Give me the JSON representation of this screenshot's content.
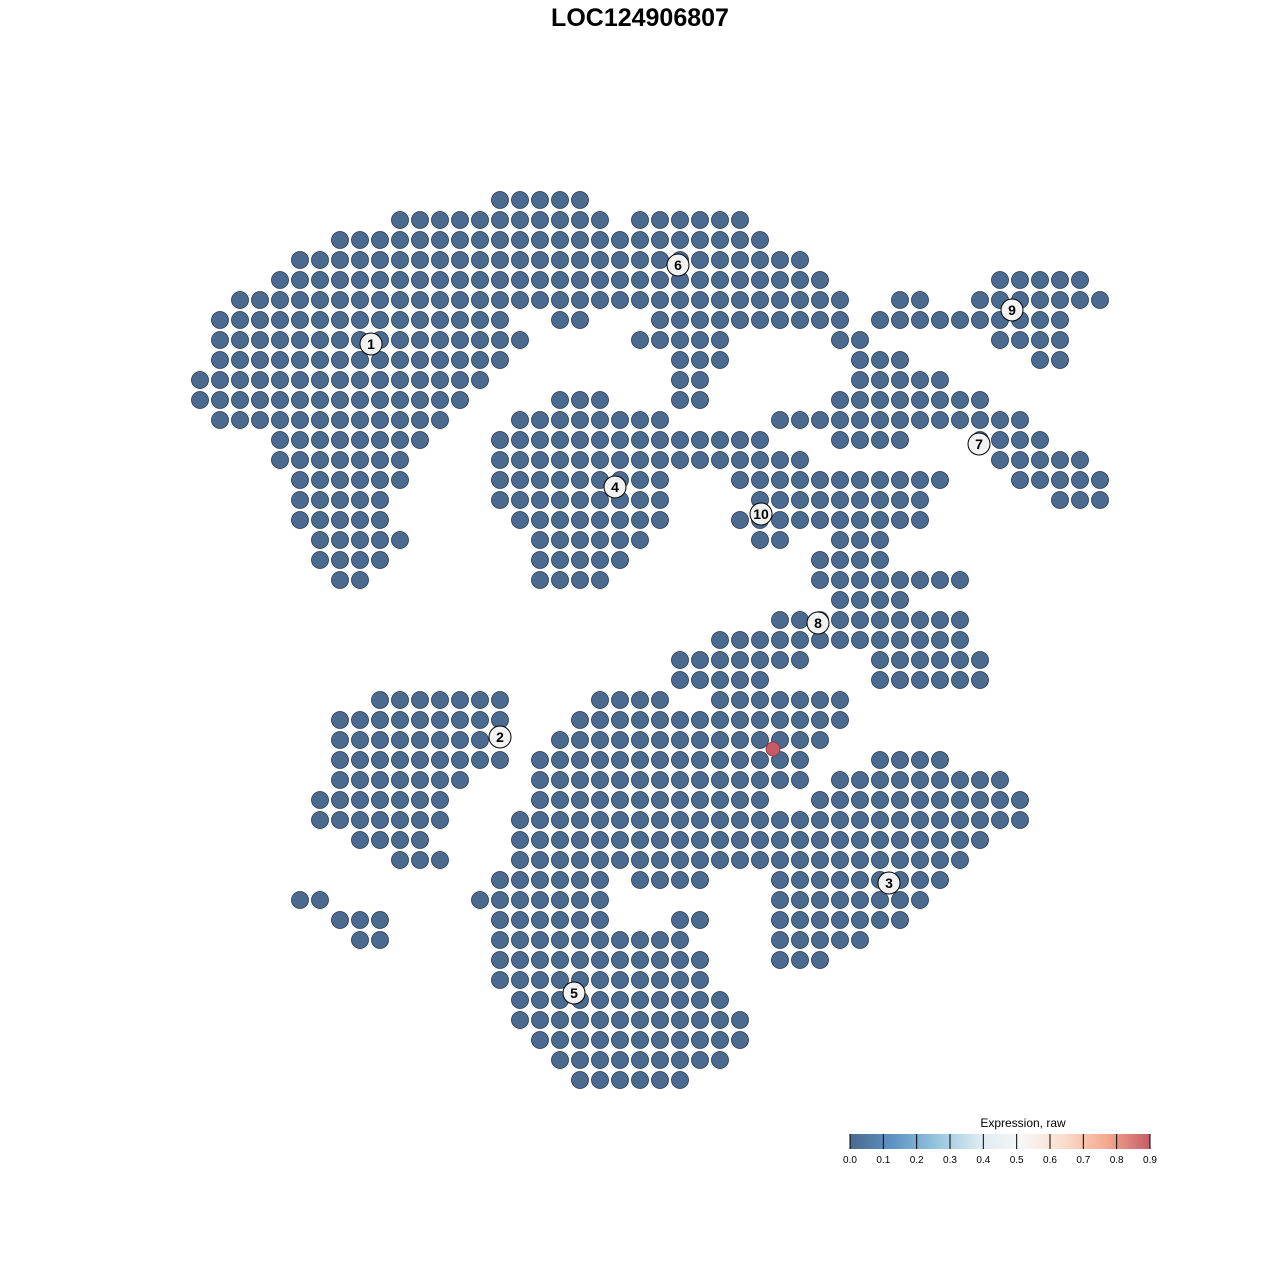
{
  "chart_data": {
    "type": "scatter",
    "title": "LOC124906807",
    "xlabel": "",
    "ylabel": "",
    "xlim": [
      -45,
      50
    ],
    "ylim": [
      -46,
      46
    ],
    "grid": false,
    "point_value_default": 0.0,
    "rows": [
      {
        "y": 44,
        "x": [
          -14,
          -12,
          -10,
          -8,
          -6
        ]
      },
      {
        "y": 42,
        "x": [
          -24,
          -22,
          -20,
          -18,
          -16,
          -14,
          -12,
          -10,
          -8,
          -6,
          -4,
          0,
          2,
          4,
          6,
          8,
          10
        ]
      },
      {
        "y": 40,
        "x": [
          -30,
          -28,
          -26,
          -24,
          -22,
          -20,
          -18,
          -16,
          -14,
          -12,
          -10,
          -8,
          -6,
          -4,
          -2,
          0,
          2,
          4,
          6,
          8,
          10,
          12
        ]
      },
      {
        "y": 38,
        "x": [
          -34,
          -32,
          -30,
          -28,
          -26,
          -24,
          -22,
          -20,
          -18,
          -16,
          -14,
          -12,
          -10,
          -8,
          -6,
          -4,
          -2,
          0,
          2,
          4,
          6,
          8,
          10,
          12,
          14,
          16
        ]
      },
      {
        "y": 36,
        "x": [
          -36,
          -34,
          -32,
          -30,
          -28,
          -26,
          -24,
          -22,
          -20,
          -18,
          -16,
          -14,
          -12,
          -10,
          -8,
          -6,
          -4,
          -2,
          0,
          2,
          4,
          6,
          8,
          10,
          12,
          14,
          16,
          18,
          36,
          38,
          40,
          42,
          44
        ]
      },
      {
        "y": 34,
        "x": [
          -40,
          -38,
          -36,
          -34,
          -32,
          -30,
          -28,
          -26,
          -24,
          -22,
          -20,
          -18,
          -16,
          -14,
          -12,
          -10,
          -8,
          -6,
          -4,
          -2,
          0,
          2,
          4,
          6,
          8,
          10,
          12,
          14,
          16,
          18,
          20,
          26,
          28,
          34,
          36,
          38,
          40,
          42,
          44,
          46
        ]
      },
      {
        "y": 32,
        "x": [
          -42,
          -40,
          -38,
          -36,
          -34,
          -32,
          -30,
          -28,
          -26,
          -24,
          -22,
          -20,
          -18,
          -16,
          -14,
          -8,
          -6,
          2,
          4,
          6,
          8,
          10,
          12,
          14,
          16,
          18,
          20,
          24,
          26,
          28,
          30,
          32,
          34,
          36,
          38,
          40,
          42
        ]
      },
      {
        "y": 30,
        "x": [
          -42,
          -40,
          -38,
          -36,
          -34,
          -32,
          -30,
          -28,
          -26,
          -24,
          -22,
          -20,
          -18,
          -16,
          -14,
          -12,
          0,
          2,
          4,
          6,
          8,
          20,
          22,
          36,
          38,
          40,
          42
        ]
      },
      {
        "y": 28,
        "x": [
          -42,
          -40,
          -38,
          -36,
          -34,
          -32,
          -30,
          -28,
          -26,
          -24,
          -22,
          -20,
          -18,
          -16,
          -14,
          4,
          6,
          8,
          22,
          24,
          26,
          40,
          42
        ]
      },
      {
        "y": 26,
        "x": [
          -44,
          -42,
          -40,
          -38,
          -36,
          -34,
          -32,
          -30,
          -28,
          -26,
          -24,
          -22,
          -20,
          -18,
          -16,
          4,
          6,
          22,
          24,
          26,
          28,
          30
        ]
      },
      {
        "y": 24,
        "x": [
          -44,
          -42,
          -40,
          -38,
          -36,
          -34,
          -32,
          -30,
          -28,
          -26,
          -24,
          -22,
          -20,
          -18,
          -8,
          -6,
          -4,
          4,
          6,
          20,
          22,
          24,
          26,
          28,
          30,
          32,
          34
        ]
      },
      {
        "y": 22,
        "x": [
          -42,
          -40,
          -38,
          -36,
          -34,
          -32,
          -30,
          -28,
          -26,
          -24,
          -22,
          -20,
          -12,
          -10,
          -8,
          -6,
          -4,
          -2,
          0,
          2,
          14,
          16,
          18,
          20,
          22,
          24,
          26,
          28,
          30,
          32,
          34,
          36,
          38
        ]
      },
      {
        "y": 20,
        "x": [
          -36,
          -34,
          -32,
          -30,
          -28,
          -26,
          -24,
          -22,
          -14,
          -12,
          -10,
          -8,
          -6,
          -4,
          -2,
          0,
          2,
          4,
          6,
          8,
          10,
          12,
          20,
          22,
          24,
          26,
          34,
          36,
          38,
          40
        ]
      },
      {
        "y": 18,
        "x": [
          -36,
          -34,
          -32,
          -30,
          -28,
          -26,
          -24,
          -14,
          -12,
          -10,
          -8,
          -6,
          -4,
          -2,
          0,
          2,
          4,
          6,
          8,
          10,
          12,
          14,
          16,
          36,
          38,
          40,
          42,
          44
        ]
      },
      {
        "y": 16,
        "x": [
          -34,
          -32,
          -30,
          -28,
          -26,
          -24,
          -14,
          -12,
          -10,
          -8,
          -6,
          -4,
          -2,
          0,
          2,
          10,
          12,
          14,
          16,
          18,
          20,
          22,
          24,
          26,
          28,
          30,
          38,
          40,
          42,
          44,
          46
        ]
      },
      {
        "y": 14,
        "x": [
          -34,
          -32,
          -30,
          -28,
          -26,
          -14,
          -12,
          -10,
          -8,
          -6,
          -4,
          -2,
          0,
          2,
          12,
          14,
          16,
          18,
          20,
          22,
          24,
          26,
          28,
          42,
          44,
          46
        ]
      },
      {
        "y": 12,
        "x": [
          -34,
          -32,
          -30,
          -28,
          -26,
          -12,
          -10,
          -8,
          -6,
          -4,
          -2,
          0,
          2,
          10,
          12,
          14,
          16,
          18,
          20,
          22,
          24,
          26,
          28
        ]
      },
      {
        "y": 10,
        "x": [
          -32,
          -30,
          -28,
          -26,
          -24,
          -10,
          -8,
          -6,
          -4,
          -2,
          0,
          12,
          14,
          20,
          22,
          24
        ]
      },
      {
        "y": 8,
        "x": [
          -32,
          -30,
          -28,
          -26,
          -10,
          -8,
          -6,
          -4,
          -2,
          18,
          20,
          22,
          24
        ]
      },
      {
        "y": 6,
        "x": [
          -30,
          -28,
          -10,
          -8,
          -6,
          -4,
          18,
          20,
          22,
          24,
          26,
          28,
          30,
          32
        ]
      },
      {
        "y": 4,
        "x": [
          20,
          22,
          24,
          26
        ]
      },
      {
        "y": 2,
        "x": [
          14,
          16,
          18,
          20,
          22,
          24,
          26,
          28,
          30,
          32
        ]
      },
      {
        "y": 0,
        "x": [
          8,
          10,
          12,
          14,
          16,
          18,
          20,
          22,
          24,
          26,
          28,
          30,
          32
        ]
      },
      {
        "y": -2,
        "x": [
          4,
          6,
          8,
          10,
          12,
          14,
          16,
          24,
          26,
          28,
          30,
          32,
          34
        ]
      },
      {
        "y": -4,
        "x": [
          4,
          6,
          8,
          10,
          12,
          24,
          26,
          28,
          30,
          32,
          34
        ]
      },
      {
        "y": -6,
        "x": [
          -26,
          -24,
          -22,
          -20,
          -18,
          -16,
          -14,
          -4,
          -2,
          0,
          2,
          8,
          10,
          12,
          14,
          16,
          18,
          20
        ]
      },
      {
        "y": -8,
        "x": [
          -30,
          -28,
          -26,
          -24,
          -22,
          -20,
          -18,
          -16,
          -14,
          -6,
          -4,
          -2,
          0,
          2,
          4,
          6,
          8,
          10,
          12,
          14,
          16,
          18,
          20
        ]
      },
      {
        "y": -10,
        "x": [
          -30,
          -28,
          -26,
          -24,
          -22,
          -20,
          -18,
          -16,
          -8,
          -6,
          -4,
          -2,
          0,
          2,
          4,
          6,
          8,
          10,
          12,
          14,
          16,
          18
        ]
      },
      {
        "y": -12,
        "x": [
          -30,
          -28,
          -26,
          -24,
          -22,
          -20,
          -18,
          -16,
          -14,
          -10,
          -8,
          -6,
          -4,
          -2,
          0,
          2,
          4,
          6,
          8,
          10,
          12,
          14,
          16,
          24,
          26,
          28,
          30
        ]
      },
      {
        "y": -14,
        "x": [
          -30,
          -28,
          -26,
          -24,
          -22,
          -20,
          -18,
          -10,
          -8,
          -6,
          -4,
          -2,
          0,
          2,
          4,
          6,
          8,
          10,
          12,
          14,
          16,
          20,
          22,
          24,
          26,
          28,
          30,
          32,
          34,
          36
        ]
      },
      {
        "y": -16,
        "x": [
          -32,
          -30,
          -28,
          -26,
          -24,
          -22,
          -20,
          -10,
          -8,
          -6,
          -4,
          -2,
          0,
          2,
          4,
          6,
          8,
          10,
          12,
          18,
          20,
          22,
          24,
          26,
          28,
          30,
          32,
          34,
          36,
          38
        ]
      },
      {
        "y": -18,
        "x": [
          -32,
          -30,
          -28,
          -26,
          -24,
          -22,
          -20,
          -12,
          -10,
          -8,
          -6,
          -4,
          -2,
          0,
          2,
          4,
          6,
          8,
          10,
          12,
          14,
          16,
          18,
          20,
          22,
          24,
          26,
          28,
          30,
          32,
          34,
          36,
          38
        ]
      },
      {
        "y": -20,
        "x": [
          -28,
          -26,
          -24,
          -22,
          -12,
          -10,
          -8,
          -6,
          -4,
          -2,
          0,
          2,
          4,
          6,
          8,
          10,
          12,
          14,
          16,
          18,
          20,
          22,
          24,
          26,
          28,
          30,
          32,
          34
        ]
      },
      {
        "y": -22,
        "x": [
          -24,
          -22,
          -20,
          -12,
          -10,
          -8,
          -6,
          -4,
          -2,
          0,
          2,
          4,
          6,
          8,
          10,
          12,
          14,
          16,
          18,
          20,
          22,
          24,
          26,
          28,
          30,
          32
        ]
      },
      {
        "y": -24,
        "x": [
          -14,
          -12,
          -10,
          -8,
          -6,
          -4,
          0,
          2,
          4,
          6,
          14,
          16,
          18,
          20,
          22,
          24,
          26,
          28,
          30
        ]
      },
      {
        "y": -26,
        "x": [
          -34,
          -32,
          -16,
          -14,
          -12,
          -10,
          -8,
          -6,
          -4,
          14,
          16,
          18,
          20,
          22,
          24,
          26,
          28
        ]
      },
      {
        "y": -28,
        "x": [
          -30,
          -28,
          -26,
          -14,
          -12,
          -10,
          -8,
          -6,
          -4,
          4,
          6,
          14,
          16,
          18,
          20,
          22,
          24,
          26
        ]
      },
      {
        "y": -30,
        "x": [
          -28,
          -26,
          -14,
          -12,
          -10,
          -8,
          -6,
          -4,
          -2,
          0,
          2,
          4,
          14,
          16,
          18,
          20,
          22
        ]
      },
      {
        "y": -32,
        "x": [
          -14,
          -12,
          -10,
          -8,
          -6,
          -4,
          -2,
          0,
          2,
          4,
          6,
          14,
          16,
          18
        ]
      },
      {
        "y": -34,
        "x": [
          -14,
          -12,
          -10,
          -8,
          -6,
          -4,
          -2,
          0,
          2,
          4,
          6
        ]
      },
      {
        "y": -36,
        "x": [
          -12,
          -10,
          -8,
          -6,
          -4,
          -2,
          0,
          2,
          4,
          6,
          8
        ]
      },
      {
        "y": -38,
        "x": [
          -12,
          -10,
          -8,
          -6,
          -4,
          -2,
          0,
          2,
          4,
          6,
          8,
          10
        ]
      },
      {
        "y": -40,
        "x": [
          -10,
          -8,
          -6,
          -4,
          -2,
          0,
          2,
          4,
          6,
          8,
          10
        ]
      },
      {
        "y": -42,
        "x": [
          -8,
          -6,
          -4,
          -2,
          0,
          2,
          4,
          6,
          8
        ]
      },
      {
        "y": -44,
        "x": [
          -6,
          -4,
          -2,
          0,
          2,
          4
        ]
      }
    ],
    "highlighted_points": [
      {
        "x": 13.3,
        "y": -10.9,
        "value": 0.9
      }
    ],
    "cluster_labels": [
      {
        "label": "1",
        "x": -26.9,
        "y": 29.6
      },
      {
        "label": "2",
        "x": -14.0,
        "y": -9.7
      },
      {
        "label": "3",
        "x": 24.9,
        "y": -24.3
      },
      {
        "label": "4",
        "x": -2.5,
        "y": 15.3
      },
      {
        "label": "5",
        "x": -6.6,
        "y": -35.3
      },
      {
        "label": "6",
        "x": 3.8,
        "y": 37.5
      },
      {
        "label": "7",
        "x": 33.9,
        "y": 19.6
      },
      {
        "label": "8",
        "x": 17.8,
        "y": 1.7
      },
      {
        "label": "9",
        "x": 37.2,
        "y": 33.0
      },
      {
        "label": "10",
        "x": 12.1,
        "y": 12.6
      }
    ],
    "legend": {
      "title": "Expression, raw",
      "placement": "bottom-right",
      "range": [
        0,
        0.9
      ],
      "ticks": [
        "0.0",
        "0.1",
        "0.2",
        "0.3",
        "0.4",
        "0.5",
        "0.6",
        "0.7",
        "0.8",
        "0.9"
      ],
      "colors": [
        "#4a6a8f",
        "#5e93c2",
        "#94c4de",
        "#dbeaf2",
        "#f7f7f7",
        "#fbdccb",
        "#f3a98f",
        "#c65b66"
      ]
    },
    "point_color_low": "#4b6a8f",
    "point_color_high": "#c65b66"
  }
}
